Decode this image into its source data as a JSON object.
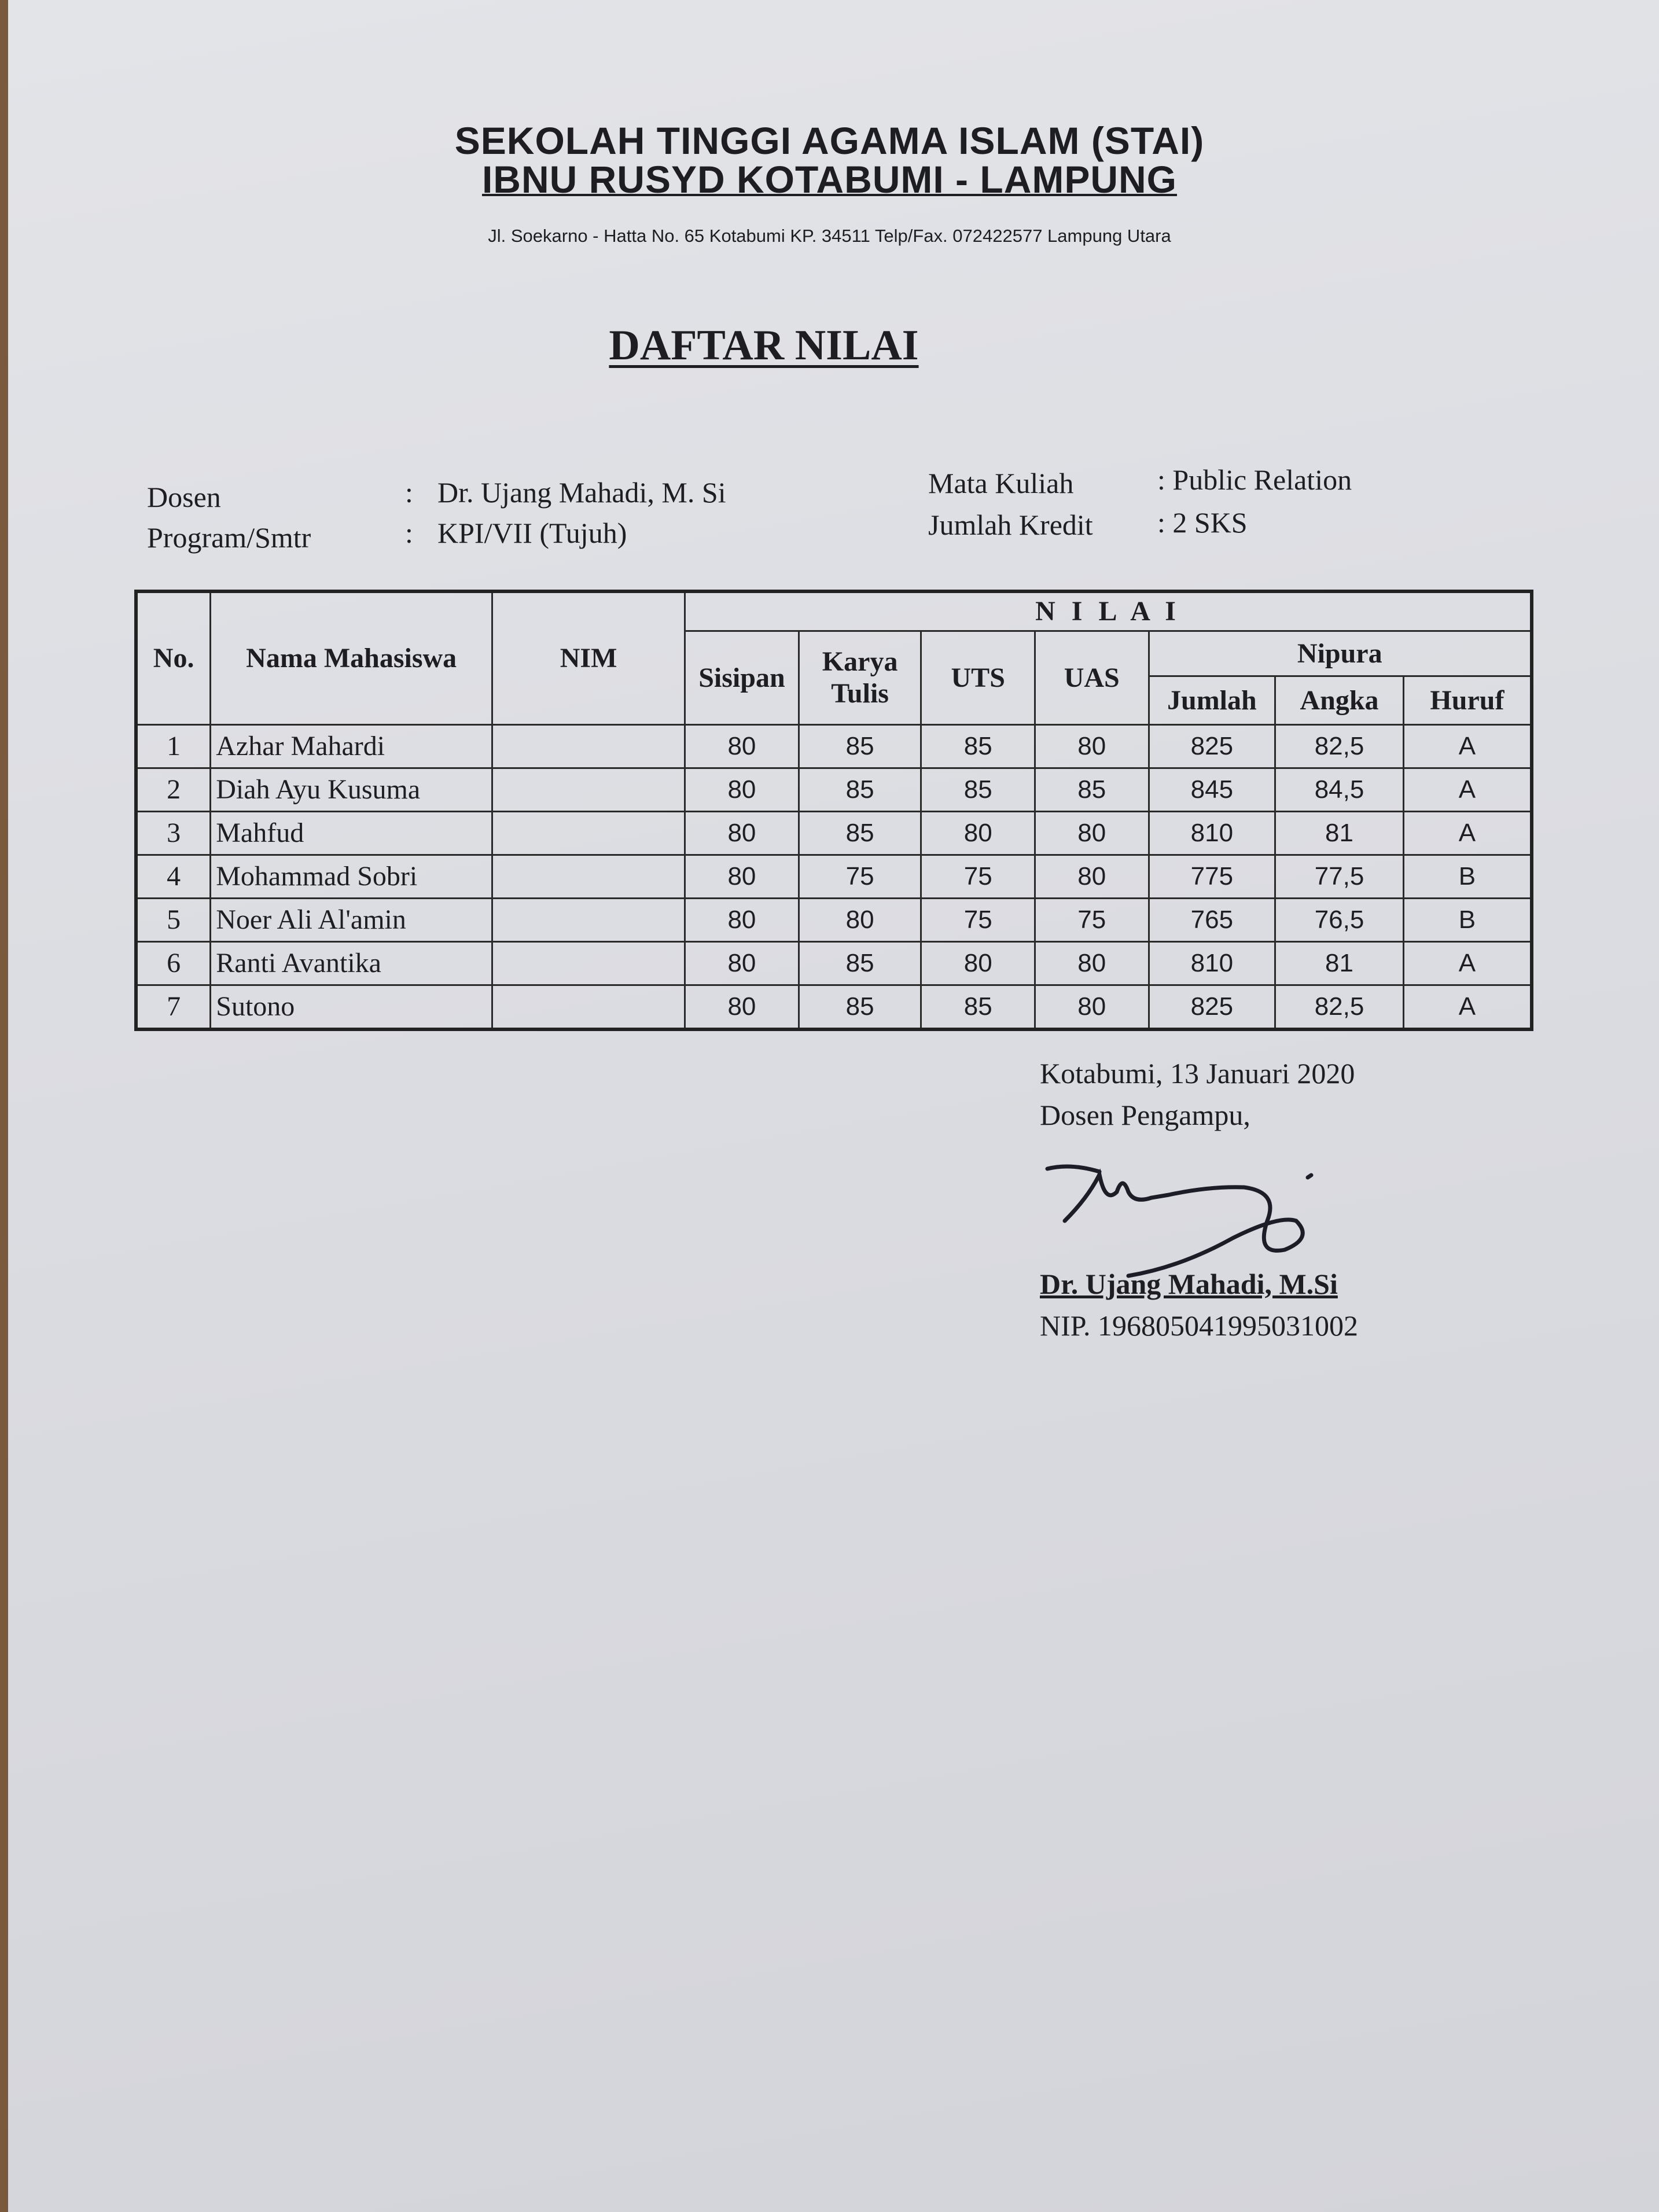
{
  "header": {
    "institution_line1": "SEKOLAH TINGGI AGAMA ISLAM (STAI)",
    "institution_line2": "IBNU RUSYD KOTABUMI - LAMPUNG",
    "address": "Jl. Soekarno - Hatta No. 65 Kotabumi KP. 34511 Telp/Fax.  072422577 Lampung Utara"
  },
  "title": "DAFTAR NILAI",
  "info": {
    "dosen_label": "Dosen",
    "dosen_value": "Dr. Ujang Mahadi, M. Si",
    "program_label": "Program/Smtr",
    "program_value": "KPI/VII (Tujuh)",
    "matkul_label": "Mata Kuliah",
    "matkul_value": ": Public Relation",
    "kredit_label": "Jumlah Kredit",
    "kredit_value": ": 2 SKS",
    "colon": ":"
  },
  "table": {
    "headers": {
      "no": "No.",
      "nama": "Nama Mahasiswa",
      "nim": "NIM",
      "nilai": "N I L A I",
      "sisipan": "Sisipan",
      "karya_tulis": "Karya Tulis",
      "uts": "UTS",
      "uas": "UAS",
      "nipura": "Nipura",
      "jumlah": "Jumlah",
      "angka": "Angka",
      "huruf": "Huruf"
    },
    "rows": [
      {
        "no": "1",
        "nama": "Azhar Mahardi",
        "nim": "",
        "sisipan": "80",
        "karya": "85",
        "uts": "85",
        "uas": "80",
        "jumlah": "825",
        "angka": "82,5",
        "huruf": "A"
      },
      {
        "no": "2",
        "nama": "Diah Ayu Kusuma",
        "nim": "",
        "sisipan": "80",
        "karya": "85",
        "uts": "85",
        "uas": "85",
        "jumlah": "845",
        "angka": "84,5",
        "huruf": "A"
      },
      {
        "no": "3",
        "nama": "Mahfud",
        "nim": "",
        "sisipan": "80",
        "karya": "85",
        "uts": "80",
        "uas": "80",
        "jumlah": "810",
        "angka": "81",
        "huruf": "A"
      },
      {
        "no": "4",
        "nama": "Mohammad Sobri",
        "nim": "",
        "sisipan": "80",
        "karya": "75",
        "uts": "75",
        "uas": "80",
        "jumlah": "775",
        "angka": "77,5",
        "huruf": "B"
      },
      {
        "no": "5",
        "nama": "Noer Ali Al'amin",
        "nim": "",
        "sisipan": "80",
        "karya": "80",
        "uts": "75",
        "uas": "75",
        "jumlah": "765",
        "angka": "76,5",
        "huruf": "B"
      },
      {
        "no": "6",
        "nama": "Ranti Avantika",
        "nim": "",
        "sisipan": "80",
        "karya": "85",
        "uts": "80",
        "uas": "80",
        "jumlah": "810",
        "angka": "81",
        "huruf": "A"
      },
      {
        "no": "7",
        "nama": "Sutono",
        "nim": "",
        "sisipan": "80",
        "karya": "85",
        "uts": "85",
        "uas": "80",
        "jumlah": "825",
        "angka": "82,5",
        "huruf": "A"
      }
    ]
  },
  "signature": {
    "place_date": "Kotabumi, 13 Januari 2020",
    "role": "Dosen Pengampu,",
    "name": "Dr. Ujang Mahadi, M.Si",
    "nip": "NIP. 196805041995031002"
  }
}
